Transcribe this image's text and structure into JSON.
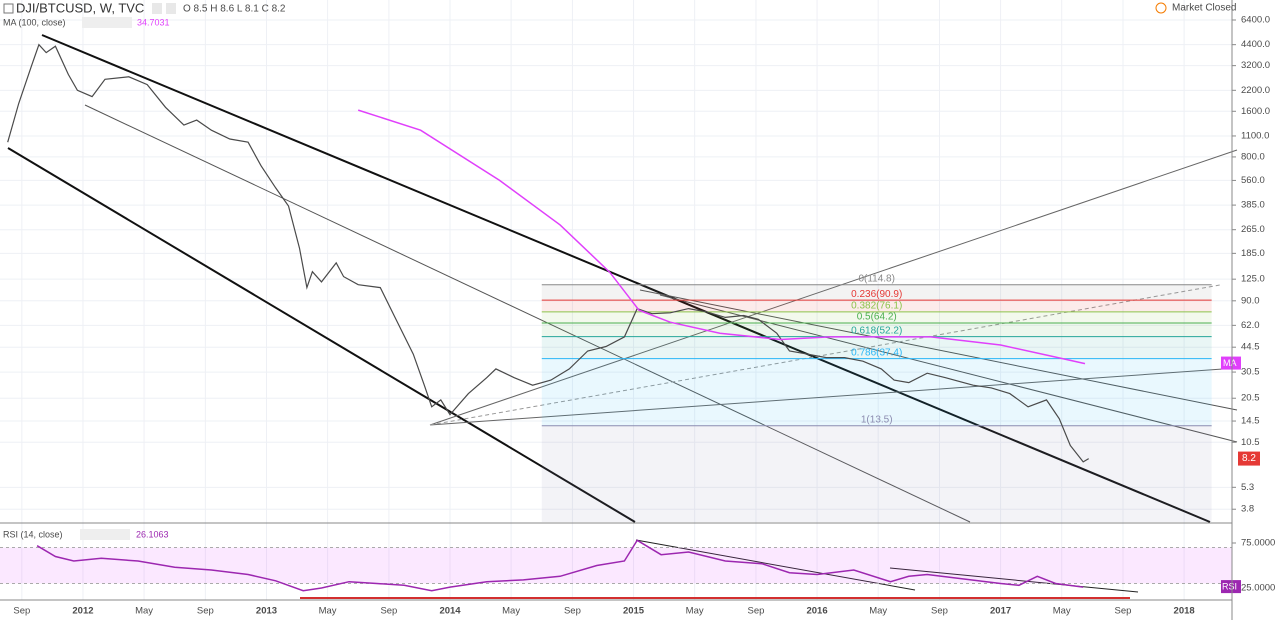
{
  "header": {
    "symbol": "DJI/BTCUSD, W, TVC",
    "ohlc": "O 8.5 H 8.6 L 8.1 C 8.2",
    "status": "Market Closed"
  },
  "chart_data": [
    {
      "type": "line",
      "log_scale": true,
      "grid": true,
      "indicator": "MA (100, close)",
      "indicator_value": "34.7031",
      "indicator_flag": "MA",
      "last_value": 8.2,
      "xlim": [
        2011.548,
        2018.25
      ],
      "ylim": [
        3.13,
        8670
      ],
      "yticks": [
        {
          "value": 6400,
          "label": "6400.0"
        },
        {
          "value": 4400,
          "label": "4400.0"
        },
        {
          "value": 3200,
          "label": "3200.0"
        },
        {
          "value": 2200,
          "label": "2200.0"
        },
        {
          "value": 1600,
          "label": "1600.0"
        },
        {
          "value": 1100,
          "label": "1100.0"
        },
        {
          "value": 800,
          "label": "800.0"
        },
        {
          "value": 560,
          "label": "560.0"
        },
        {
          "value": 385,
          "label": "385.0"
        },
        {
          "value": 265,
          "label": "265.0"
        },
        {
          "value": 185,
          "label": "185.0"
        },
        {
          "value": 125,
          "label": "125.0"
        },
        {
          "value": 90,
          "label": "90.0"
        },
        {
          "value": 62,
          "label": "62.0"
        },
        44.5,
        30.5,
        20.5,
        14.5,
        10.5,
        5.3,
        3.8
      ],
      "fib": {
        "start": 2014.5,
        "end": 2018.15,
        "levels": [
          {
            "label": "0(114.8)",
            "value": 114.8,
            "color": "#888888"
          },
          {
            "label": "0.236(90.9)",
            "value": 90.9,
            "color": "#e53935"
          },
          {
            "label": "0.382(76.1)",
            "value": 76.1,
            "color": "#8bc34a"
          },
          {
            "label": "0.5(64.2)",
            "value": 64.2,
            "color": "#4caf50"
          },
          {
            "label": "0.618(52.2)",
            "value": 52.2,
            "color": "#26a69a"
          },
          {
            "label": "0.786(37.4)",
            "value": 37.4,
            "color": "#29b6f6"
          },
          {
            "label": "1(13.5)",
            "value": 13.5,
            "color": "#8c8cb0"
          }
        ]
      },
      "series": [
        {
          "name": "DJI/BTCUSD",
          "color": "#4a4a4a",
          "x": [
            2011.59,
            2011.65,
            2011.72,
            2011.76,
            2011.8,
            2011.85,
            2011.92,
            2011.97,
            2012.05,
            2012.12,
            2012.25,
            2012.35,
            2012.45,
            2012.55,
            2012.62,
            2012.7,
            2012.8,
            2012.9,
            2012.97,
            2013.05,
            2013.12,
            2013.18,
            2013.22,
            2013.25,
            2013.3,
            2013.38,
            2013.42,
            2013.5,
            2013.62,
            2013.7,
            2013.8,
            2013.86,
            2013.9,
            2013.95,
            2014.0,
            2014.1,
            2014.2,
            2014.25,
            2014.35,
            2014.45,
            2014.55,
            2014.65,
            2014.75,
            2014.85,
            2014.95,
            2015.02,
            2015.1,
            2015.2,
            2015.3,
            2015.4,
            2015.5,
            2015.6,
            2015.68,
            2015.78,
            2015.85,
            2015.95,
            2016.05,
            2016.15,
            2016.25,
            2016.35,
            2016.42,
            2016.5,
            2016.6,
            2016.7,
            2016.85,
            2016.95,
            2017.05,
            2017.15,
            2017.25,
            2017.32,
            2017.38,
            2017.45,
            2017.48
          ],
          "values": [
            1000,
            1800,
            3200,
            4400,
            3900,
            4300,
            2800,
            2200,
            2000,
            2600,
            2700,
            2400,
            1700,
            1300,
            1400,
            1200,
            1050,
            1000,
            700,
            500,
            380,
            200,
            110,
            140,
            120,
            160,
            130,
            115,
            110,
            70,
            40,
            25,
            18,
            20,
            16,
            22,
            28,
            32,
            28,
            25,
            27,
            32,
            42,
            45,
            52,
            80,
            74,
            75,
            80,
            76,
            70,
            72,
            68,
            55,
            42,
            40,
            38,
            38,
            36,
            32,
            27,
            26,
            30,
            28,
            25,
            24,
            22,
            18,
            20,
            15,
            10,
            7.8,
            8.2
          ]
        },
        {
          "name": "MA (100, close)",
          "color": "#e040fb",
          "x": [
            2013.5,
            2013.84,
            2014.27,
            2014.6,
            2014.87,
            2015.03,
            2015.2,
            2015.47,
            2015.8,
            2016.07,
            2016.62,
            2017.0,
            2017.27,
            2017.46
          ],
          "values": [
            1630,
            1200,
            560,
            285,
            139,
            78,
            65,
            55,
            50,
            52,
            52,
            46,
            39,
            34.7
          ]
        }
      ]
    },
    {
      "type": "line",
      "title": "RSI (14, close)",
      "value_label": "26.1063",
      "flag": "RSI",
      "xlim": [
        2011.548,
        2018.25
      ],
      "ylim": [
        15,
        95
      ],
      "band": [
        30,
        70
      ],
      "yticks": [
        {
          "value": 75,
          "label": "75.0000"
        },
        {
          "value": 25,
          "label": "25.0000"
        }
      ],
      "xticks": [
        {
          "value": 2011.667,
          "label": "Sep"
        },
        {
          "value": 2012,
          "label": "2012"
        },
        {
          "value": 2012.333,
          "label": "May"
        },
        {
          "value": 2012.667,
          "label": "Sep"
        },
        {
          "value": 2013,
          "label": "2013"
        },
        {
          "value": 2013.333,
          "label": "May"
        },
        {
          "value": 2013.667,
          "label": "Sep"
        },
        {
          "value": 2014,
          "label": "2014"
        },
        {
          "value": 2014.333,
          "label": "May"
        },
        {
          "value": 2014.667,
          "label": "Sep"
        },
        {
          "value": 2015,
          "label": "2015"
        },
        {
          "value": 2015.333,
          "label": "May"
        },
        {
          "value": 2015.667,
          "label": "Sep"
        },
        {
          "value": 2016,
          "label": "2016"
        },
        {
          "value": 2016.333,
          "label": "May"
        },
        {
          "value": 2016.667,
          "label": "Sep"
        },
        {
          "value": 2017,
          "label": "2017"
        },
        {
          "value": 2017.333,
          "label": "May"
        },
        {
          "value": 2017.667,
          "label": "Sep"
        },
        {
          "value": 2018,
          "label": "2018"
        }
      ],
      "series": [
        {
          "name": "RSI",
          "color": "#9c27b0",
          "x": [
            2011.75,
            2011.85,
            2011.95,
            2012.1,
            2012.3,
            2012.5,
            2012.7,
            2012.9,
            2013.05,
            2013.2,
            2013.3,
            2013.45,
            2013.6,
            2013.75,
            2013.9,
            2014.0,
            2014.2,
            2014.4,
            2014.6,
            2014.8,
            2014.95,
            2015.02,
            2015.15,
            2015.3,
            2015.5,
            2015.7,
            2015.85,
            2016.0,
            2016.2,
            2016.4,
            2016.5,
            2016.6,
            2016.8,
            2017.0,
            2017.1,
            2017.2,
            2017.3,
            2017.45
          ],
          "values": [
            72,
            60,
            55,
            58,
            55,
            48,
            45,
            40,
            33,
            22,
            25,
            32,
            30,
            28,
            22,
            26,
            32,
            34,
            38,
            50,
            55,
            78,
            62,
            65,
            55,
            52,
            42,
            40,
            45,
            32,
            38,
            40,
            35,
            30,
            28,
            38,
            30,
            26
          ]
        }
      ]
    }
  ]
}
